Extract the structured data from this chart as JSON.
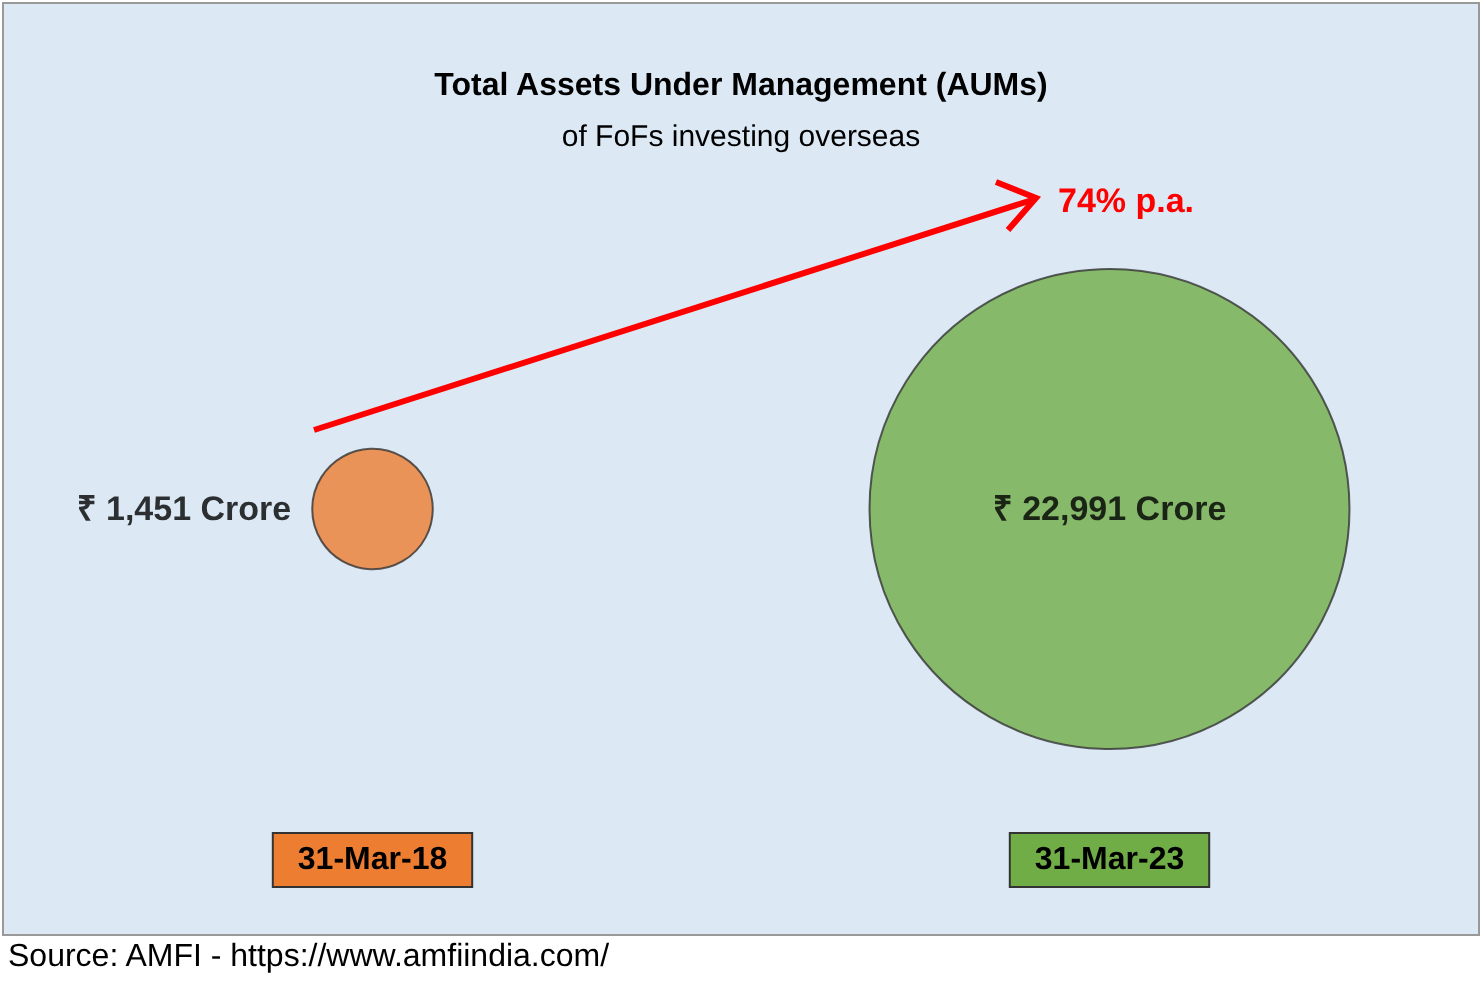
{
  "chart_data": {
    "type": "other",
    "title": "Total Assets Under Management (AUMs)",
    "subtitle": "of FoFs investing overseas",
    "categories": [
      "31-Mar-18",
      "31-Mar-23"
    ],
    "values": [
      1451,
      22991
    ],
    "colors": [
      "#ed7d31",
      "#70ad47"
    ],
    "value_labels": [
      "₹ 1,451 Crore",
      "₹ 22,991 Crore"
    ],
    "annotations": [
      "74% p.a.",
      "Source: AMFI - https://www.amfiindia.com/"
    ]
  }
}
